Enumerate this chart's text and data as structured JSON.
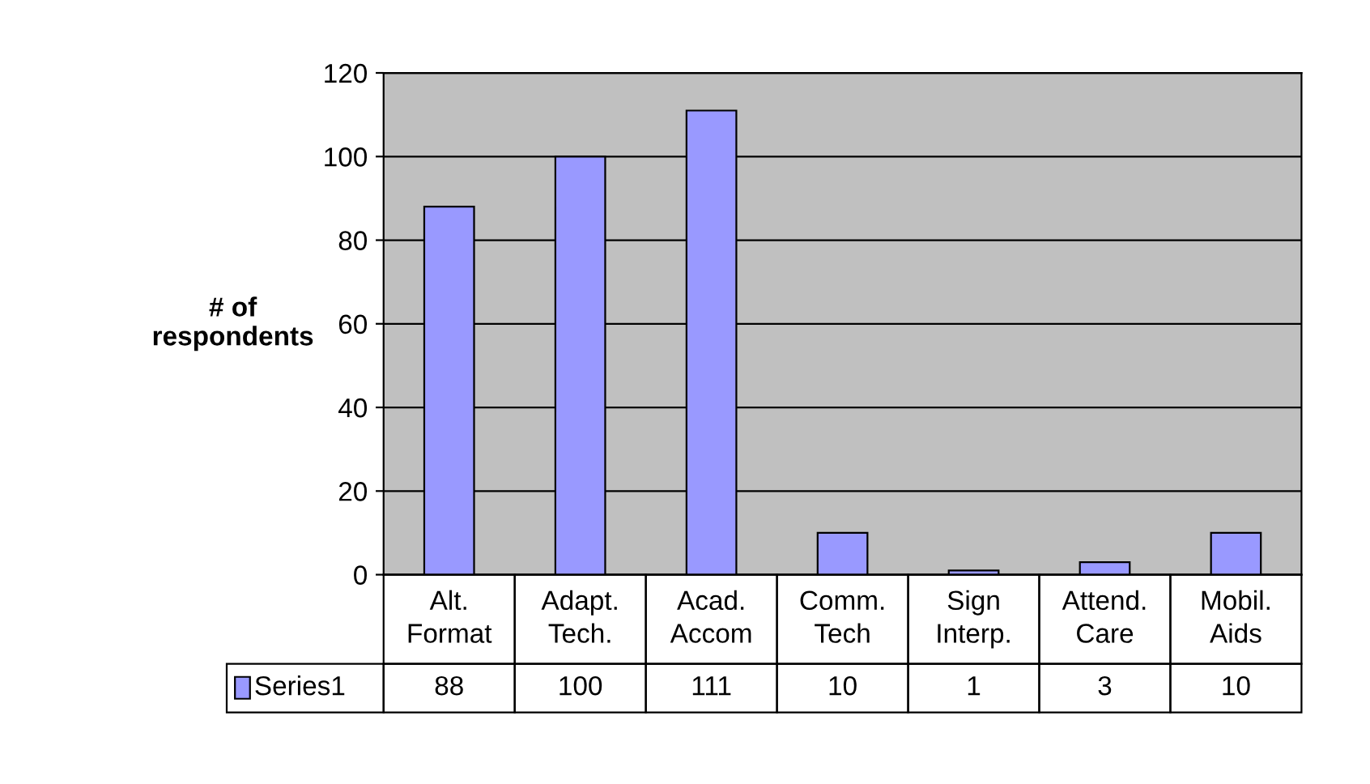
{
  "chart_data": {
    "type": "bar",
    "ylabel": "# of\nrespondents",
    "categories": [
      "Alt.\nFormat",
      "Adapt.\nTech.",
      "Acad.\nAccom",
      "Comm.\nTech",
      "Sign\nInterp.",
      "Attend.\nCare",
      "Mobil.\nAids"
    ],
    "series": [
      {
        "name": "Series1",
        "color": "#9999ff",
        "values": [
          88,
          100,
          111,
          10,
          1,
          3,
          10
        ]
      }
    ],
    "ylim": [
      0,
      120
    ],
    "yticks": [
      0,
      20,
      40,
      60,
      80,
      100,
      120
    ],
    "grid": "y",
    "data_labels": true,
    "legend": "bottom left"
  }
}
